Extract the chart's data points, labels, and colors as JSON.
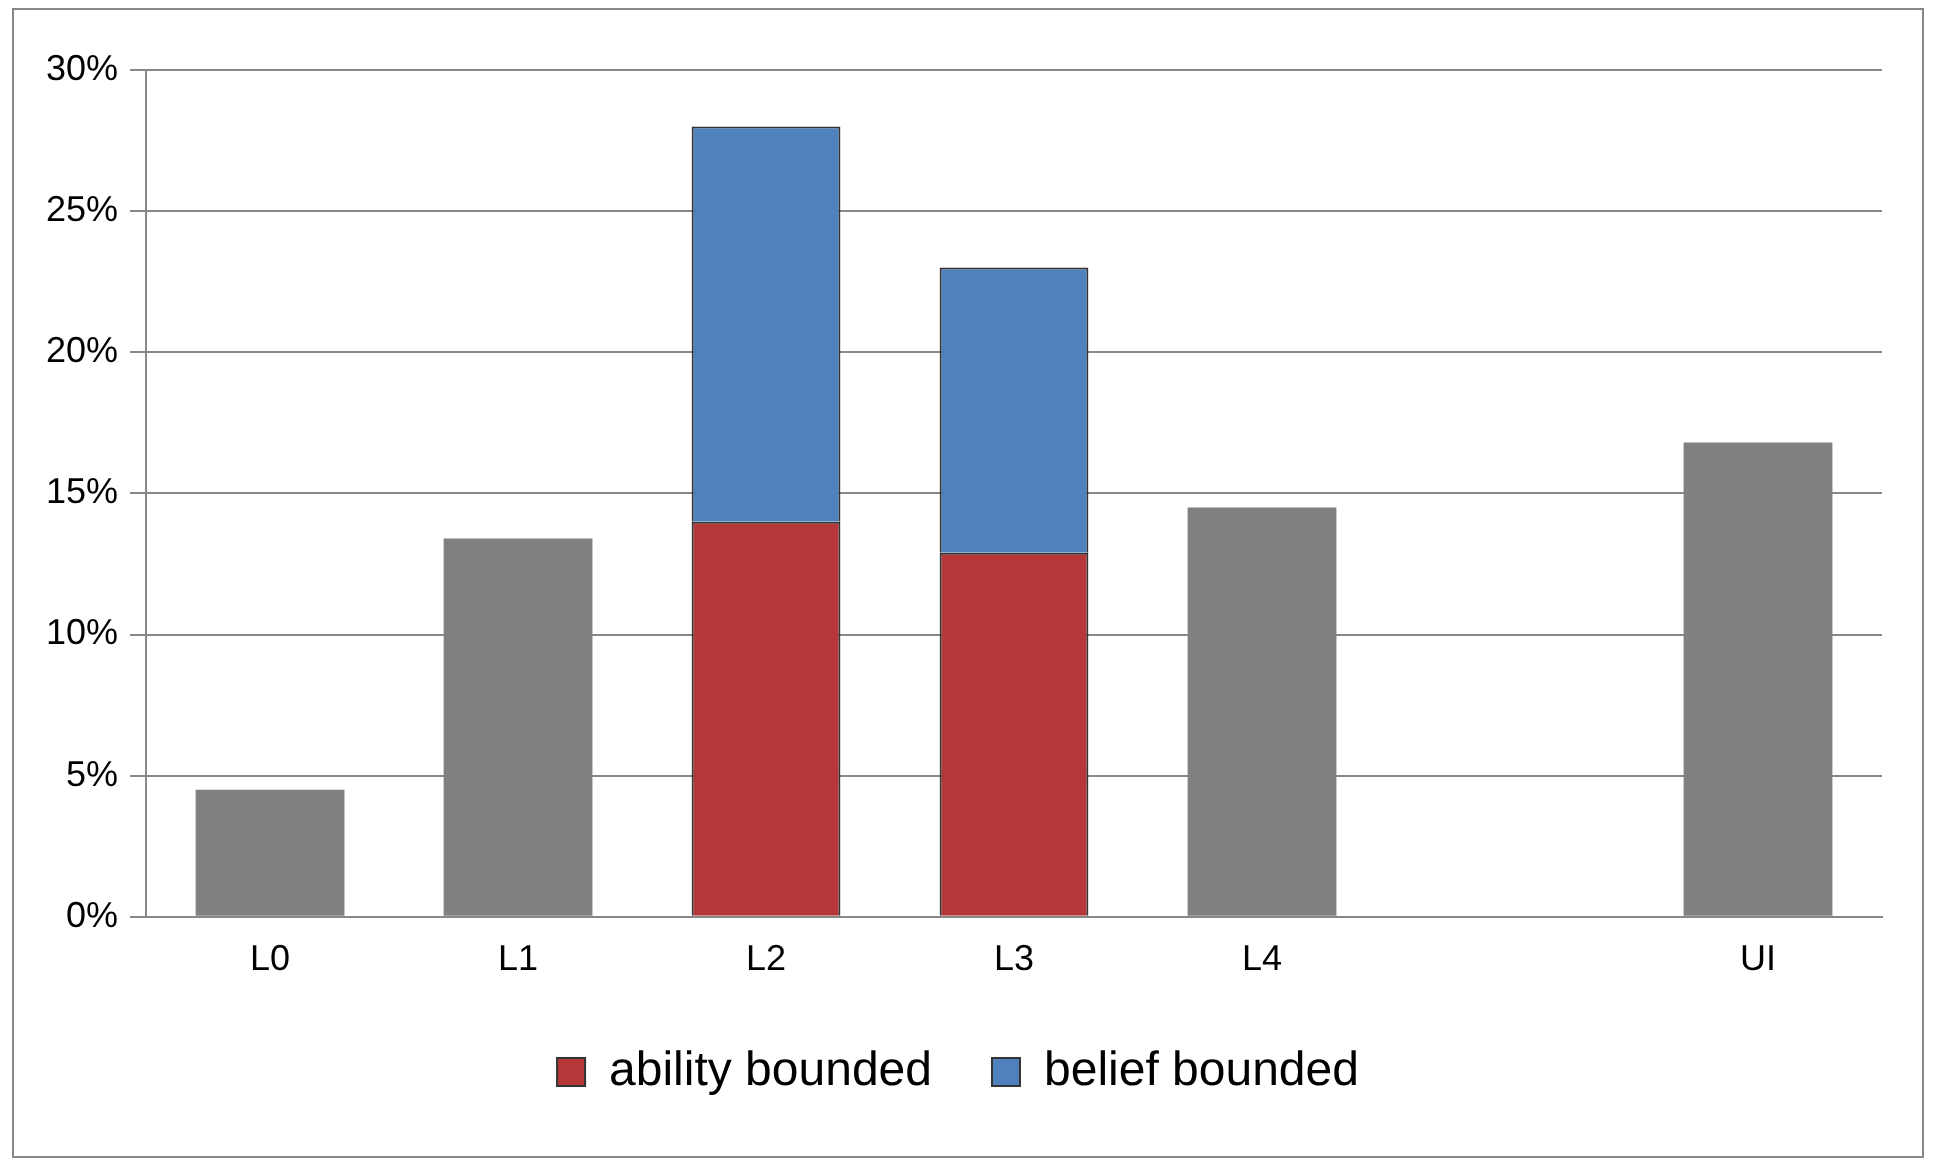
{
  "chart_data": {
    "type": "bar",
    "stacked": true,
    "categories": [
      "L0",
      "L1",
      "L2",
      "L3",
      "L4",
      null,
      "UI"
    ],
    "series": [
      {
        "color": "#808080",
        "values": [
          4.5,
          13.4,
          null,
          null,
          14.5,
          null,
          16.8
        ]
      },
      {
        "name": "ability bounded",
        "color": "#b5373a",
        "values": [
          null,
          null,
          14.0,
          12.9,
          null,
          null,
          null
        ]
      },
      {
        "name": "belief bounded",
        "color": "#4f81bd",
        "values": [
          null,
          null,
          14.0,
          10.1,
          null,
          null,
          null
        ]
      }
    ],
    "ylim": [
      0,
      30
    ],
    "yticks": [
      {
        "value": 0,
        "label": "0%"
      },
      {
        "value": 5,
        "label": "5%"
      },
      {
        "value": 10,
        "label": "10%"
      },
      {
        "value": 15,
        "label": "15%"
      },
      {
        "value": 20,
        "label": "20%"
      },
      {
        "value": 25,
        "label": "25%"
      },
      {
        "value": 30,
        "label": "30%"
      }
    ],
    "grid": "y",
    "legend": "bottom"
  }
}
